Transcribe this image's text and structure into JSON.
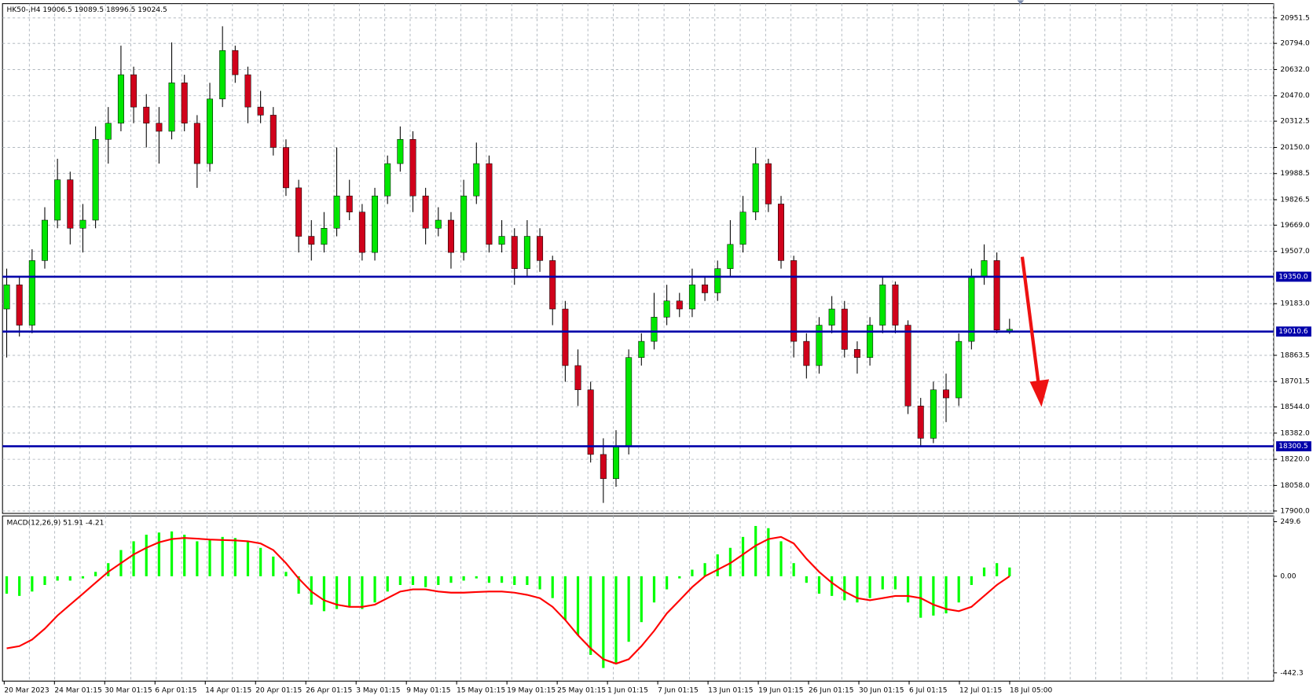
{
  "chart_data": [
    {
      "type": "candlestick",
      "symbol": "HK50-,H4",
      "up_color": "#00e600",
      "down_color": "#d0021b",
      "grid": true,
      "level_color": "#0000aa",
      "candles": [
        [
          19150,
          19400,
          18850,
          19300
        ],
        [
          19300,
          19350,
          18980,
          19050
        ],
        [
          19050,
          19520,
          19000,
          19450
        ],
        [
          19450,
          19780,
          19400,
          19700
        ],
        [
          19700,
          20080,
          19650,
          19950
        ],
        [
          19950,
          20000,
          19550,
          19650
        ],
        [
          19650,
          19800,
          19500,
          19700
        ],
        [
          19700,
          20280,
          19650,
          20200
        ],
        [
          20200,
          20400,
          20050,
          20300
        ],
        [
          20300,
          20780,
          20250,
          20600
        ],
        [
          20600,
          20650,
          20300,
          20400
        ],
        [
          20400,
          20480,
          20150,
          20300
        ],
        [
          20300,
          20400,
          20050,
          20250
        ],
        [
          20250,
          20800,
          20200,
          20550
        ],
        [
          20550,
          20600,
          20250,
          20300
        ],
        [
          20300,
          20350,
          19900,
          20050
        ],
        [
          20050,
          20550,
          20000,
          20450
        ],
        [
          20450,
          20900,
          20400,
          20750
        ],
        [
          20750,
          20780,
          20550,
          20600
        ],
        [
          20600,
          20650,
          20300,
          20400
        ],
        [
          20400,
          20500,
          20300,
          20350
        ],
        [
          20350,
          20400,
          20100,
          20150
        ],
        [
          20150,
          20200,
          19850,
          19900
        ],
        [
          19900,
          19950,
          19500,
          19600
        ],
        [
          19600,
          19700,
          19450,
          19550
        ],
        [
          19550,
          19750,
          19500,
          19650
        ],
        [
          19650,
          20150,
          19600,
          19850
        ],
        [
          19850,
          19950,
          19700,
          19750
        ],
        [
          19750,
          19800,
          19450,
          19500
        ],
        [
          19500,
          19900,
          19450,
          19850
        ],
        [
          19850,
          20100,
          19800,
          20050
        ],
        [
          20050,
          20280,
          20000,
          20200
        ],
        [
          20200,
          20250,
          19750,
          19850
        ],
        [
          19850,
          19900,
          19550,
          19650
        ],
        [
          19650,
          19780,
          19600,
          19700
        ],
        [
          19700,
          19750,
          19400,
          19500
        ],
        [
          19500,
          19950,
          19450,
          19850
        ],
        [
          19850,
          20180,
          19800,
          20050
        ],
        [
          20050,
          20100,
          19500,
          19550
        ],
        [
          19550,
          19700,
          19500,
          19600
        ],
        [
          19600,
          19650,
          19300,
          19400
        ],
        [
          19400,
          19700,
          19350,
          19600
        ],
        [
          19600,
          19650,
          19380,
          19450
        ],
        [
          19450,
          19480,
          19050,
          19150
        ],
        [
          19150,
          19200,
          18700,
          18800
        ],
        [
          18800,
          18900,
          18550,
          18650
        ],
        [
          18650,
          18700,
          18200,
          18250
        ],
        [
          18250,
          18350,
          17950,
          18100
        ],
        [
          18100,
          18400,
          18050,
          18300
        ],
        [
          18300,
          18900,
          18250,
          18850
        ],
        [
          18850,
          19000,
          18800,
          18950
        ],
        [
          18950,
          19250,
          18900,
          19100
        ],
        [
          19100,
          19300,
          19050,
          19200
        ],
        [
          19200,
          19250,
          19100,
          19150
        ],
        [
          19150,
          19400,
          19100,
          19300
        ],
        [
          19300,
          19350,
          19200,
          19250
        ],
        [
          19250,
          19450,
          19200,
          19400
        ],
        [
          19400,
          19700,
          19350,
          19550
        ],
        [
          19550,
          19850,
          19500,
          19750
        ],
        [
          19750,
          20150,
          19700,
          20050
        ],
        [
          20050,
          20080,
          19750,
          19800
        ],
        [
          19800,
          19850,
          19400,
          19450
        ],
        [
          19450,
          19480,
          18850,
          18950
        ],
        [
          18950,
          19000,
          18720,
          18800
        ],
        [
          18800,
          19100,
          18750,
          19050
        ],
        [
          19050,
          19230,
          19000,
          19150
        ],
        [
          19150,
          19200,
          18850,
          18900
        ],
        [
          18900,
          18950,
          18750,
          18850
        ],
        [
          18850,
          19100,
          18800,
          19050
        ],
        [
          19050,
          19350,
          19000,
          19300
        ],
        [
          19300,
          19320,
          19000,
          19050
        ],
        [
          19050,
          19080,
          18500,
          18550
        ],
        [
          18550,
          18600,
          18300,
          18350
        ],
        [
          18350,
          18700,
          18320,
          18650
        ],
        [
          18650,
          18750,
          18450,
          18600
        ],
        [
          18600,
          19000,
          18550,
          18950
        ],
        [
          18950,
          19400,
          18900,
          19350
        ],
        [
          19350,
          19550,
          19300,
          19450
        ],
        [
          19450,
          19500,
          19000,
          19020
        ],
        [
          19006.5,
          19089.5,
          18996.5,
          19024.5
        ]
      ],
      "categories": [
        "20 Mar 2023",
        "24 Mar 01:15",
        "30 Mar 01:15",
        "6 Apr 01:15",
        "14 Apr 01:15",
        "20 Apr 01:15",
        "26 Apr 01:15",
        "3 May 01:15",
        "9 May 01:15",
        "15 May 01:15",
        "19 May 01:15",
        "25 May 01:15",
        "1 Jun 01:15",
        "7 Jun 01:15",
        "13 Jun 01:15",
        "19 Jun 01:15",
        "26 Jun 01:15",
        "30 Jun 01:15",
        "6 Jul 01:15",
        "12 Jul 01:15",
        "18 Jul 05:00"
      ],
      "ylim": [
        17885,
        21040
      ],
      "yticks": [
        20951.5,
        {
          "value": 20794,
          "label": "20794.0"
        },
        {
          "value": 20632,
          "label": "20632.0"
        },
        {
          "value": 20470,
          "label": "20470.0"
        },
        20312.5,
        {
          "value": 20150,
          "label": "20150.0"
        },
        19988.5,
        19826.5,
        {
          "value": 19669,
          "label": "19669.0"
        },
        {
          "value": 19507,
          "label": "19507.0"
        },
        {
          "value": 19183,
          "label": "19183.0"
        },
        18863.5,
        18701.5,
        {
          "value": 18544,
          "label": "18544.0"
        },
        {
          "value": 18382,
          "label": "18382.0"
        },
        {
          "value": 18220,
          "label": "18220.0"
        },
        {
          "value": 18058,
          "label": "18058.0"
        },
        {
          "value": 17900,
          "label": "17900.0"
        }
      ],
      "levels": [
        {
          "value": 19350,
          "label": "19350.0"
        },
        19010.6,
        18300.5
      ]
    },
    {
      "type": "macd",
      "title": "MACD(12,26,9)",
      "readings": [
        51.91,
        -4.21
      ],
      "hist_color": "#00ff00",
      "signal_color": "#ff0000",
      "ylim": [
        -480,
        276
      ],
      "yticks": [
        249.6,
        {
          "value": 0,
          "label": "0.00"
        },
        -442.3
      ],
      "histogram": [
        -80,
        -90,
        -70,
        -40,
        -20,
        -20,
        -10,
        20,
        60,
        120,
        160,
        190,
        200,
        205,
        190,
        160,
        165,
        180,
        175,
        160,
        130,
        90,
        20,
        -80,
        -130,
        -160,
        -150,
        -140,
        -150,
        -120,
        -70,
        -40,
        -40,
        -50,
        -40,
        -30,
        -20,
        -10,
        -30,
        -30,
        -40,
        -40,
        -60,
        -100,
        -200,
        -270,
        -360,
        -420,
        -400,
        -300,
        -210,
        -120,
        -60,
        -10,
        30,
        60,
        100,
        130,
        180,
        230,
        220,
        160,
        60,
        -30,
        -80,
        -90,
        -110,
        -120,
        -100,
        -60,
        -60,
        -120,
        -190,
        -180,
        -170,
        -120,
        -40,
        40,
        60,
        40
      ],
      "signal": [
        -330,
        -320,
        -290,
        -240,
        -180,
        -130,
        -80,
        -30,
        20,
        60,
        100,
        130,
        155,
        170,
        175,
        172,
        168,
        166,
        164,
        160,
        150,
        120,
        60,
        -10,
        -70,
        -110,
        -130,
        -140,
        -140,
        -130,
        -100,
        -70,
        -60,
        -60,
        -70,
        -75,
        -75,
        -72,
        -70,
        -70,
        -75,
        -85,
        -100,
        -140,
        -200,
        -270,
        -330,
        -380,
        -400,
        -380,
        -320,
        -250,
        -170,
        -110,
        -50,
        0,
        30,
        60,
        100,
        140,
        170,
        180,
        150,
        80,
        20,
        -30,
        -70,
        -100,
        -110,
        -100,
        -90,
        -90,
        -100,
        -130,
        -150,
        -160,
        -140,
        -90,
        -40,
        0
      ]
    }
  ]
}
